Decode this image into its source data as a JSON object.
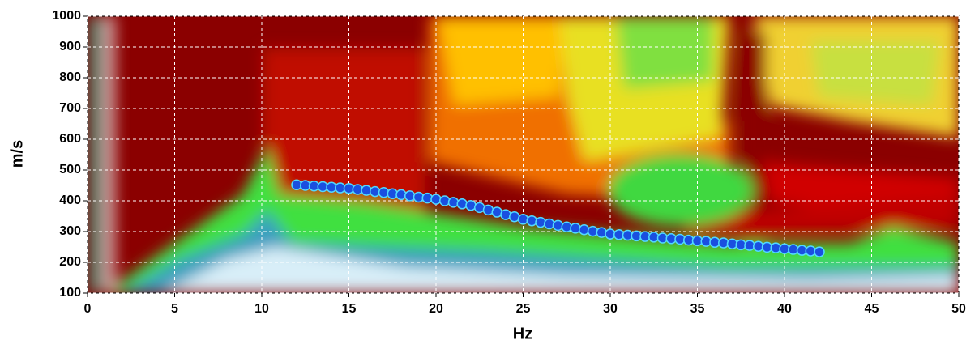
{
  "chart_data": {
    "type": "scatter",
    "x_label": "Hz",
    "y_label": "m/s",
    "xlim": [
      0,
      50
    ],
    "xticks": [
      0,
      5,
      10,
      15,
      20,
      25,
      30,
      35,
      40,
      45,
      50
    ],
    "ylim": [
      100,
      1000
    ],
    "yticks": [
      100,
      200,
      300,
      400,
      500,
      600,
      700,
      800,
      900,
      1000
    ],
    "grid": true,
    "color": "#1a4fe0",
    "x": [
      12,
      12.5,
      13,
      13.5,
      14,
      14.5,
      15,
      15.5,
      16,
      16.5,
      17,
      17.5,
      18,
      18.5,
      19,
      19.5,
      20,
      20.5,
      21,
      21.5,
      22,
      22.5,
      23,
      23.5,
      24,
      24.5,
      25,
      25.5,
      26,
      26.5,
      27,
      27.5,
      28,
      28.5,
      29,
      29.5,
      30,
      30.5,
      31,
      31.5,
      32,
      32.5,
      33,
      33.5,
      34,
      34.5,
      35,
      35.5,
      36,
      36.5,
      37,
      37.5,
      38,
      38.5,
      39,
      39.5,
      40,
      40.5,
      41,
      41.5,
      42
    ],
    "values": [
      452,
      450,
      448,
      446,
      444,
      442,
      440,
      437,
      434,
      430,
      427,
      423,
      420,
      416,
      412,
      409,
      405,
      400,
      395,
      390,
      385,
      378,
      370,
      363,
      355,
      348,
      340,
      335,
      330,
      325,
      320,
      315,
      311,
      306,
      301,
      297,
      292,
      290,
      288,
      286,
      284,
      282,
      279,
      277,
      275,
      272,
      270,
      268,
      265,
      263,
      260,
      257,
      255,
      252,
      249,
      247,
      244,
      242,
      239,
      237,
      234
    ]
  }
}
